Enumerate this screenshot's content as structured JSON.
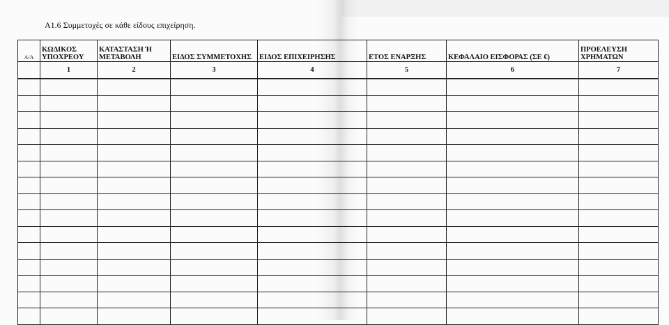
{
  "title": "A1.6 Συμμετοχές σε κάθε είδους επιχείρηση.",
  "columns": [
    {
      "header": "A/A",
      "number": ""
    },
    {
      "header": "ΚΩΔΙΚΟΣ ΥΠΟΧΡΕΟΥ",
      "number": "1"
    },
    {
      "header": "ΚΑΤΑΣΤΑΣΗ Ή ΜΕΤΑΒΟΛΗ",
      "number": "2"
    },
    {
      "header": "ΕΙΔΟΣ ΣΥΜΜΕΤΟΧΗΣ",
      "number": "3"
    },
    {
      "header": "ΕΙΔΟΣ ΕΠΙΧΕΙΡΗΣΗΣ",
      "number": "4"
    },
    {
      "header": "ΕΤΟΣ ΕΝΑΡΞΗΣ",
      "number": "5"
    },
    {
      "header": "ΚΕΦΑΛΑΙΟ ΕΙΣΦΟΡΑΣ (ΣΕ €)",
      "number": "6"
    },
    {
      "header": "ΠΡΟΕΛΕΥΣΗ ΧΡΗΜΑΤΩΝ",
      "number": "7"
    }
  ]
}
